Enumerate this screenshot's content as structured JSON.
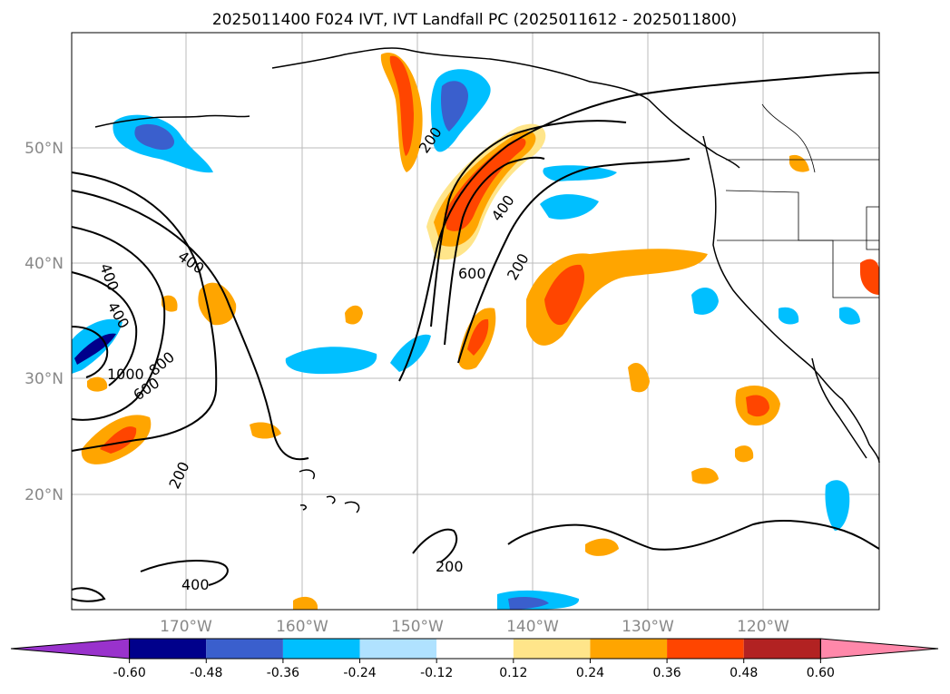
{
  "title": "2025011400 F024 IVT, IVT Landfall PC (2025011612 - 2025011800)",
  "axes": {
    "lat_labels": [
      "50°N",
      "40°N",
      "30°N",
      "20°N"
    ],
    "lon_labels": [
      "170°W",
      "160°W",
      "150°W",
      "140°W",
      "130°W",
      "120°W"
    ]
  },
  "colorbar": {
    "levels": [
      "-0.60",
      "-0.48",
      "-0.36",
      "-0.24",
      "-0.12",
      "0.12",
      "0.24",
      "0.36",
      "0.48",
      "0.60"
    ],
    "colors": [
      "#9932cc",
      "#00008b",
      "#3a5fcd",
      "#00bfff",
      "#b0e2ff",
      "#ffffff",
      "#ffe58a",
      "#ffa500",
      "#ff4500",
      "#b22222",
      "#ff88aa"
    ]
  },
  "contour_labels": [
    "400",
    "400",
    "400",
    "1000",
    "800",
    "600",
    "200",
    "400",
    "200",
    "600",
    "400",
    "200",
    "200"
  ],
  "chart_data": {
    "type": "heatmap",
    "title": "2025011400 F024 IVT, IVT Landfall PC (2025011612 - 2025011800)",
    "xlabel": "",
    "ylabel": "",
    "xlim": [
      "180°W",
      "110°W"
    ],
    "ylim": [
      "10°N",
      "60°N"
    ],
    "grid": true,
    "colorbar_levels": [
      -0.6,
      -0.48,
      -0.36,
      -0.24,
      -0.12,
      0.12,
      0.24,
      0.36,
      0.48,
      0.6
    ],
    "contour_levels": [
      200,
      400,
      600,
      800,
      1000
    ]
  }
}
